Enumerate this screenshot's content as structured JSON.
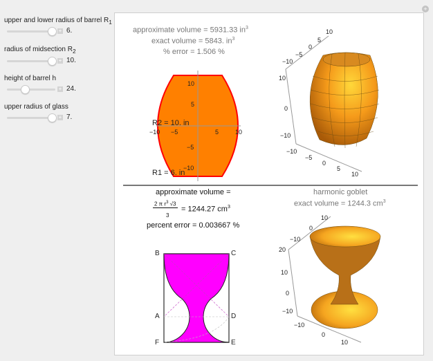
{
  "controls": [
    {
      "label": "upper and lower radius of barrel R",
      "sub": "1",
      "value": "6.",
      "fraction": 0.95
    },
    {
      "label": "radius of midsection R",
      "sub": "2",
      "value": "10.",
      "fraction": 0.95
    },
    {
      "label": "height of barrel h",
      "sub": "",
      "value": "24.",
      "fraction": 0.35
    },
    {
      "label": "upper radius of glass",
      "sub": "",
      "value": "7.",
      "fraction": 0.95
    }
  ],
  "barrel": {
    "approx": "approximate volume = 5931.33 in",
    "exact": "exact volume = 5843. in",
    "error": "% error = 1.506 %",
    "sup": "3",
    "r2_label": "R2 = 10. in",
    "r1_label": "R1 = 6. in",
    "xticks": [
      "−10",
      "−5",
      "5",
      "10"
    ],
    "yticks": [
      "10",
      "5",
      "−5",
      "−10"
    ],
    "fill": "#ff8000",
    "stroke": "#ff0000"
  },
  "barrel3d": {
    "vticks": [
      "10",
      "0",
      "−10"
    ],
    "topticks": [
      "−10",
      "−5",
      "0",
      "5",
      "10"
    ],
    "bottomticks": [
      "−10",
      "−5",
      "0",
      "5",
      "10"
    ]
  },
  "goblet": {
    "approx": "approximate volume =",
    "formula_num": "2 π r",
    "formula_sup": "3",
    "formula_root": "√3",
    "formula_den": "3",
    "formula_result": "= 1244.27 cm",
    "sup": "3",
    "percent": "percent error = 0.003667 %",
    "points": [
      "B",
      "C",
      "A",
      "D",
      "F",
      "E"
    ],
    "fill": "#ff00ff"
  },
  "goblet3d": {
    "title": "harmonic goblet",
    "exact": "exact volume = 1244.3 cm",
    "sup": "3",
    "vticks": [
      "20",
      "10",
      "0",
      "−10"
    ],
    "topticks": [
      "−10",
      "0",
      "10"
    ],
    "bottomticks": [
      "−10",
      "0",
      "10"
    ]
  }
}
